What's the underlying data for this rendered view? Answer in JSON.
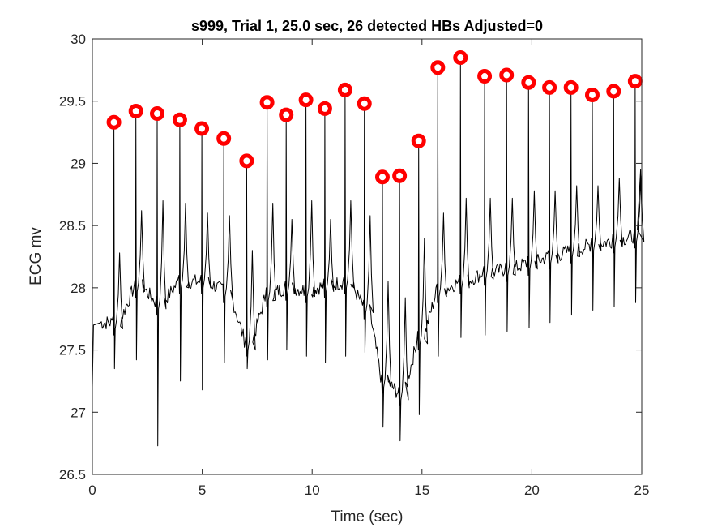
{
  "chart_data": {
    "type": "line",
    "title": "s999, Trial 1, 25.0 sec, 26 detected HBs Adjusted=0",
    "xlabel": "Time (sec)",
    "ylabel": "ECG mv",
    "xlim": [
      0,
      25
    ],
    "ylim": [
      26.5,
      30
    ],
    "xticks": [
      0,
      5,
      10,
      15,
      20,
      25
    ],
    "yticks": [
      26.5,
      27,
      27.5,
      28,
      28.5,
      29,
      29.5,
      30
    ],
    "grid": false,
    "colors": {
      "trace": "#000000",
      "marker": "#ff0000"
    },
    "series": [
      {
        "values_kind": "detected-heartbeat-peaks",
        "x": [
          0.98,
          1.98,
          2.95,
          3.98,
          4.98,
          5.98,
          7.02,
          7.95,
          8.82,
          9.72,
          10.58,
          11.5,
          12.38,
          13.2,
          13.98,
          14.85,
          15.72,
          16.75,
          17.85,
          18.85,
          19.85,
          20.8,
          21.78,
          22.75,
          23.72,
          24.7
        ],
        "y": [
          29.33,
          29.42,
          29.4,
          29.35,
          29.28,
          29.2,
          29.02,
          29.49,
          29.39,
          29.51,
          29.44,
          29.59,
          29.48,
          28.89,
          28.9,
          29.18,
          29.77,
          29.85,
          29.7,
          29.71,
          29.65,
          29.61,
          29.61,
          29.55,
          29.58,
          29.66
        ],
        "trough_y": [
          27.35,
          27.42,
          26.73,
          27.25,
          27.18,
          27.4,
          27.35,
          27.42,
          27.5,
          27.45,
          27.4,
          27.45,
          27.48,
          26.88,
          26.77,
          26.98,
          27.45,
          27.6,
          27.62,
          27.65,
          27.68,
          27.72,
          27.78,
          27.82,
          27.85,
          27.88
        ],
        "baseline_y": [
          27.72,
          28.02,
          27.88,
          28.05,
          28.05,
          27.98,
          27.55,
          27.95,
          28.0,
          27.98,
          28.02,
          28.05,
          27.85,
          27.25,
          27.15,
          27.6,
          27.98,
          28.05,
          28.12,
          28.15,
          28.2,
          28.25,
          28.3,
          28.35,
          28.38,
          28.42
        ],
        "twave_y": [
          28.28,
          28.62,
          28.7,
          28.68,
          28.6,
          28.58,
          28.3,
          28.68,
          28.55,
          28.7,
          28.55,
          28.7,
          28.58,
          28.05,
          27.92,
          28.4,
          28.6,
          28.72,
          28.72,
          28.72,
          28.78,
          28.78,
          28.82,
          28.82,
          28.88,
          28.9
        ]
      }
    ]
  }
}
